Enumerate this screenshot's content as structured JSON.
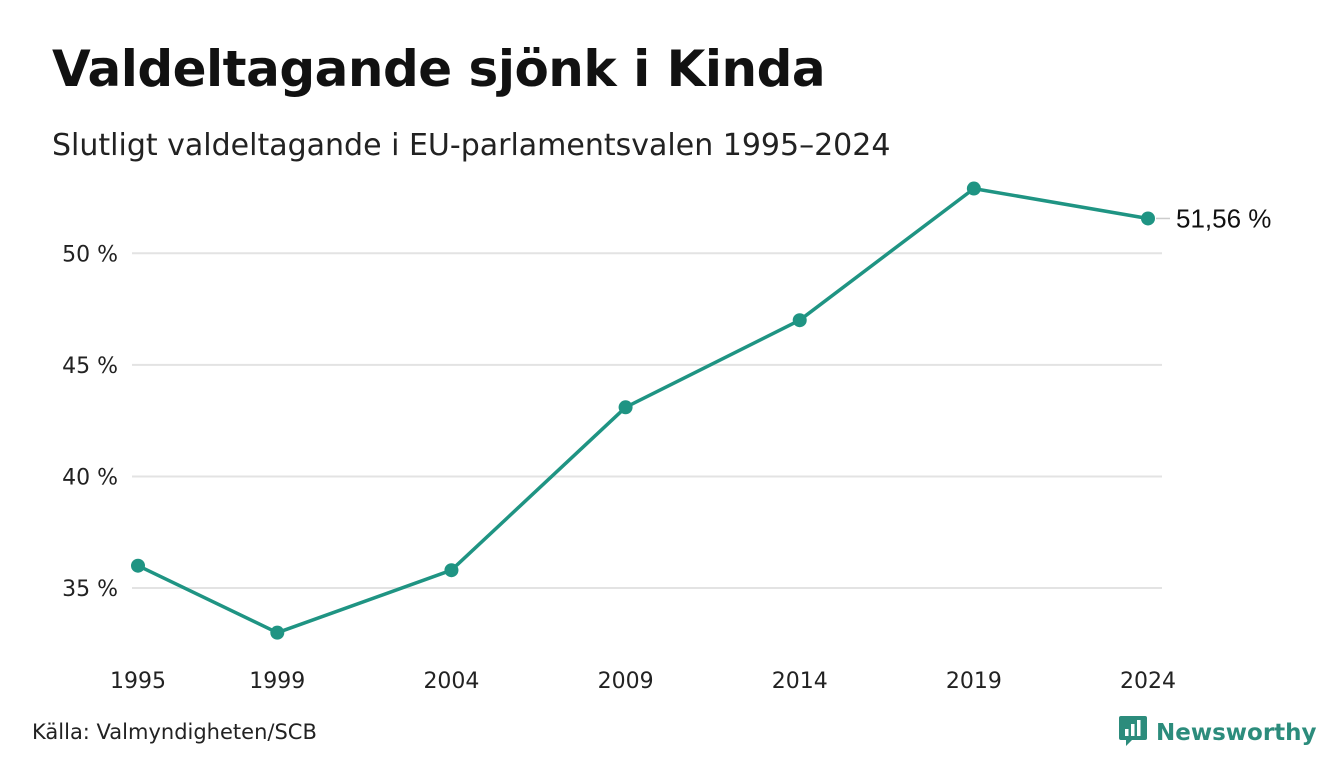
{
  "header": {
    "title": "Valdeltagande sjönk i Kinda",
    "subtitle": "Slutligt valdeltagande i EU-parlamentsvalen 1995–2024"
  },
  "footer": {
    "source": "Källa: Valmyndigheten/SCB",
    "brand": "Newsworthy",
    "brand_icon": "newsworthy-logo-icon",
    "brand_color": "#2c8c7c"
  },
  "chart_data": {
    "type": "line",
    "title": "Valdeltagande sjönk i Kinda",
    "subtitle": "Slutligt valdeltagande i EU-parlamentsvalen 1995–2024",
    "x": [
      1995,
      1999,
      2004,
      2009,
      2014,
      2019,
      2024
    ],
    "x_tick_labels": [
      "1995",
      "1999",
      "2004",
      "2009",
      "2014",
      "2019",
      "2024"
    ],
    "series": [
      {
        "values": [
          36.0,
          33.0,
          35.8,
          43.1,
          47.0,
          52.9,
          51.56
        ],
        "color": "#1f9483"
      }
    ],
    "y_ticks": [
      35,
      40,
      45,
      50
    ],
    "y_tick_labels": [
      "35 %",
      "40 %",
      "45 %",
      "50 %"
    ],
    "ylim": [
      32,
      54
    ],
    "grid": true,
    "end_label": "51,56 %",
    "grid_color": "#e3e3e3"
  }
}
